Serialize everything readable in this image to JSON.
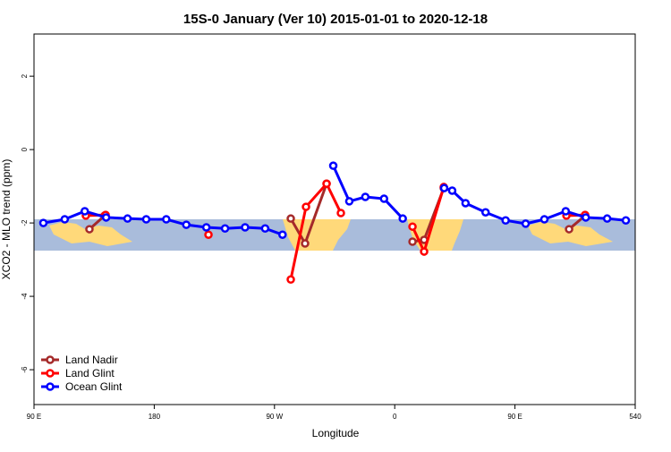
{
  "chart_data": {
    "type": "line",
    "title": "15S-0 January (Ver 10)   2015-01-01 to 2020-12-18",
    "x_label": "Longitude",
    "y_label": "XCO2 - MLO trend (ppm)",
    "xlim": [
      90,
      540
    ],
    "xticks": [
      {
        "value": 90,
        "label": "90 E"
      },
      180,
      {
        "value": 270,
        "label": "90 W"
      },
      {
        "value": 360,
        "label": "0"
      },
      {
        "value": 450,
        "label": "90 E"
      },
      540
    ],
    "ylim": [
      -6.95,
      3.15
    ],
    "yticks": [
      -6,
      -4,
      -2,
      0,
      2
    ],
    "legend": "bottom-left",
    "series": [
      {
        "name": "Land Nadir",
        "color": "#a52a2a",
        "x": [
          131.5,
          142.9,
          212,
          282.2,
          292.9,
          309.0,
          341,
          373.3,
          382.0,
          396.7,
          443,
          490.5,
          502.5
        ],
        "values": [
          -2.17,
          -1.8,
          null,
          -1.88,
          -2.56,
          -0.93,
          null,
          -2.51,
          -2.46,
          -1.05,
          null,
          -2.17,
          -1.8
        ]
      },
      {
        "name": "Land Glint",
        "color": "#ff0000",
        "x": [
          128.8,
          143.6,
          182,
          220.6,
          251,
          282.2,
          293.6,
          309.0,
          319.7,
          346,
          373.3,
          382.0,
          396.7,
          442,
          488.5,
          502.5
        ],
        "values": [
          -1.8,
          -1.78,
          null,
          -2.32,
          null,
          -3.54,
          -1.56,
          -0.93,
          -1.73,
          null,
          -2.1,
          -2.78,
          -1.02,
          null,
          -1.8,
          -1.78
        ]
      },
      {
        "name": "Ocean Glint",
        "color": "#0000ff",
        "x": [
          97,
          113,
          128,
          144,
          160,
          174,
          189,
          204,
          219,
          233,
          248,
          263,
          276,
          295,
          314,
          326,
          338,
          352,
          366,
          382,
          397,
          403,
          413,
          428,
          443,
          458,
          472,
          488,
          503,
          519,
          533
        ],
        "values": [
          -2.0,
          -1.9,
          -1.68,
          -1.85,
          -1.88,
          -1.9,
          -1.9,
          -2.05,
          -2.12,
          -2.15,
          -2.12,
          -2.15,
          -2.32,
          null,
          -0.44,
          -1.41,
          -1.29,
          -1.34,
          -1.88,
          null,
          -1.05,
          -1.12,
          -1.46,
          -1.71,
          -1.93,
          -2.02,
          -1.9,
          -1.68,
          -1.85,
          -1.88,
          -1.93
        ]
      }
    ]
  }
}
